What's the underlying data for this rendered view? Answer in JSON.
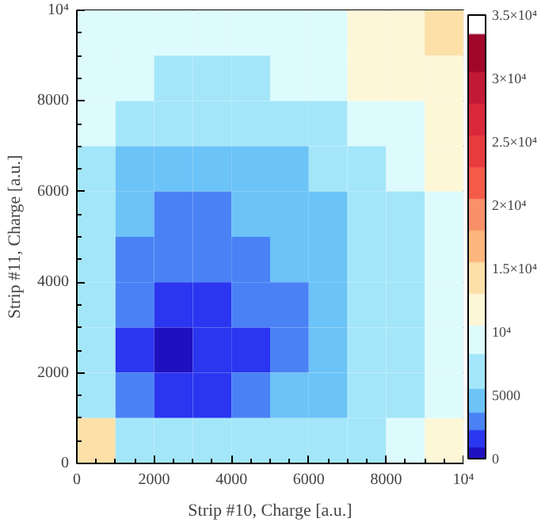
{
  "chart_data": {
    "type": "heatmap",
    "xlabel": "Strip #10, Charge [a.u.]",
    "ylabel": "Strip #11, Charge [a.u.]",
    "x": [
      500,
      1500,
      2500,
      3500,
      4500,
      5500,
      6500,
      7500,
      8500,
      9500
    ],
    "y": [
      9500,
      8500,
      7500,
      6500,
      5500,
      4500,
      3500,
      2500,
      1500,
      500
    ],
    "xlim": [
      0,
      10000
    ],
    "ylim": [
      0,
      10000
    ],
    "xticks": [
      0,
      2000,
      4000,
      6000,
      8000,
      {
        "value": 10000,
        "label": "10⁴"
      }
    ],
    "yticks": [
      0,
      2000,
      4000,
      6000,
      8000,
      {
        "value": 10000,
        "label": "10⁴"
      }
    ],
    "clim": [
      0,
      35000
    ],
    "cticks": [
      0,
      5000,
      {
        "value": 10000,
        "label": "10⁴"
      },
      {
        "value": 15000,
        "label": "1.5×10⁴"
      },
      {
        "value": 20000,
        "label": "2×10⁴"
      },
      {
        "value": 25000,
        "label": "2.5×10⁴"
      },
      {
        "value": 30000,
        "label": "3×10⁴"
      },
      {
        "value": 35000,
        "label": "3.5×10⁴"
      }
    ],
    "cells": [
      [
        9300,
        9300,
        9300,
        9300,
        9300,
        9300,
        9300,
        11800,
        11800,
        14500
      ],
      [
        9300,
        9300,
        6800,
        6800,
        6800,
        9300,
        9300,
        11800,
        11800,
        11800
      ],
      [
        9300,
        6800,
        6800,
        6800,
        6800,
        6800,
        6800,
        9300,
        9300,
        11800
      ],
      [
        6800,
        4500,
        4500,
        4500,
        4500,
        4500,
        6800,
        6800,
        9300,
        11800
      ],
      [
        6800,
        4500,
        3000,
        3000,
        4500,
        4500,
        4500,
        6800,
        6800,
        9300
      ],
      [
        6800,
        3000,
        3000,
        3000,
        3000,
        4500,
        4500,
        6800,
        6800,
        9300
      ],
      [
        6800,
        3000,
        1600,
        1600,
        3000,
        3000,
        4500,
        6800,
        6800,
        9300
      ],
      [
        6800,
        1600,
        500,
        1600,
        1600,
        3000,
        4500,
        6800,
        6800,
        9300
      ],
      [
        6800,
        3000,
        1600,
        1600,
        3000,
        4500,
        4500,
        6800,
        6800,
        9300
      ],
      [
        14500,
        6800,
        6800,
        6800,
        6800,
        6800,
        6800,
        6800,
        9300,
        11800
      ]
    ]
  }
}
